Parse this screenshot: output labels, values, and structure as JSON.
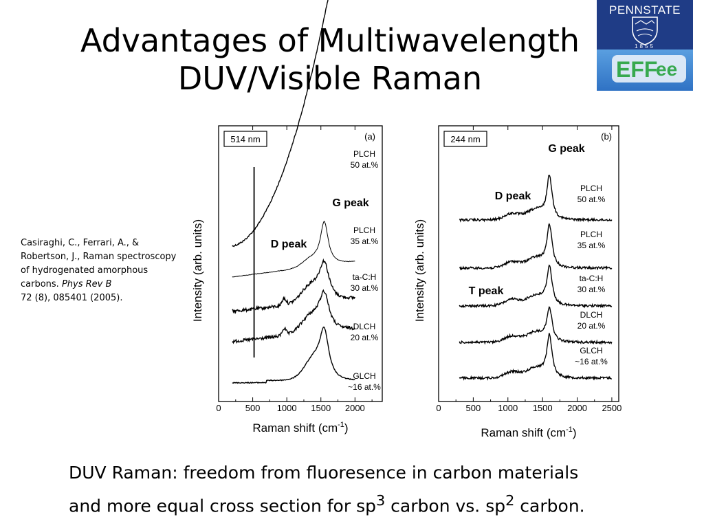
{
  "slide": {
    "title_line1": "Advantages of Multiwavelength",
    "title_line2": "DUV/Visible Raman"
  },
  "logo": {
    "university_text": "PENNSTATE",
    "year_text": "1855",
    "lab_text": "EFF",
    "lab_suffix": "ee",
    "colors": {
      "top": "#1f3c86",
      "bottom": "#3f86d1",
      "lab_green": "#37a94f"
    },
    "icon": "penn-state-shield-icon"
  },
  "citation": {
    "text": "Casiraghi, C., Ferrari, A., & Robertson, J., Raman spectroscopy of hydrogenated amorphous carbons.",
    "journal": "Phys Rev B",
    "ref": "72 (8), 085401 (2005)."
  },
  "caption": {
    "line1": "DUV Raman: freedom from fluoresence in carbon materials",
    "line2_a": "and more equal cross section for sp",
    "sup1": "3",
    "line2_b": " carbon vs. sp",
    "sup2": "2",
    "line2_c": " carbon."
  },
  "chart_data": [
    {
      "type": "line",
      "panel_label": "(a)",
      "wavelength_label": "514 nm",
      "xlabel": "Raman shift (cm",
      "xlabel_sup": "-1",
      "xlabel_end": ")",
      "ylabel": "Intensity (arb. units)",
      "xlim": [
        0,
        2400
      ],
      "x_ticks": [
        "0",
        "500",
        "1000",
        "1500",
        "2000"
      ],
      "x_tick_values": [
        0,
        500,
        1000,
        1500,
        2000
      ],
      "annotations": [
        "G peak",
        "D peak"
      ],
      "series": [
        {
          "name": "PLCH",
          "name2": "50 at.%",
          "offset": 4,
          "profile": "background",
          "x": [
            200,
            2000
          ]
        },
        {
          "name": "PLCH",
          "name2": "35 at.%",
          "offset": 3,
          "profile": "thin",
          "x": [
            200,
            2000
          ]
        },
        {
          "name": "ta-C:H",
          "name2": "30 at.%",
          "offset": 2,
          "profile": "noisy",
          "x": [
            200,
            2000
          ]
        },
        {
          "name": "DLCH",
          "name2": "20 at.%",
          "offset": 1,
          "profile": "noisy",
          "x": [
            200,
            2000
          ]
        },
        {
          "name": "GLCH",
          "name2": "~16 at.%",
          "offset": 0,
          "profile": "smooth",
          "x": [
            200,
            2000
          ]
        }
      ],
      "g_peak_position": 1550,
      "spike_position": 520
    },
    {
      "type": "line",
      "panel_label": "(b)",
      "wavelength_label": "244 nm",
      "xlabel": "Raman shift (cm",
      "xlabel_sup": "-1",
      "xlabel_end": ")",
      "ylabel": "Intensity (arb. units)",
      "xlim": [
        0,
        2600
      ],
      "x_ticks": [
        "0",
        "500",
        "1000",
        "1500",
        "2000",
        "2500"
      ],
      "x_tick_values": [
        0,
        500,
        1000,
        1500,
        2000,
        2500
      ],
      "annotations": [
        "G peak",
        "D peak",
        "T peak"
      ],
      "series": [
        {
          "name": "PLCH",
          "name2": "50 at.%",
          "offset": 4,
          "x": [
            300,
            2500
          ]
        },
        {
          "name": "PLCH",
          "name2": "35 at.%",
          "offset": 3,
          "x": [
            300,
            2500
          ]
        },
        {
          "name": "ta-C:H",
          "name2": "30 at.%",
          "offset": 2,
          "x": [
            300,
            2500
          ]
        },
        {
          "name": "DLCH",
          "name2": "20 at.%",
          "offset": 1,
          "x": [
            300,
            2500
          ]
        },
        {
          "name": "GLCH",
          "name2": "~16 at.%",
          "offset": 0,
          "x": [
            300,
            2500
          ]
        }
      ],
      "g_peak_position": 1600,
      "t_peak_position": 1060
    }
  ]
}
